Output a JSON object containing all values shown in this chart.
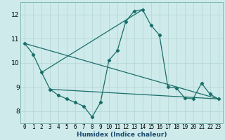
{
  "xlabel": "Humidex (Indice chaleur)",
  "background_color": "#ceeaea",
  "grid_color": "#b8d8d8",
  "line_color": "#1a6e6a",
  "xlim": [
    -0.5,
    23.5
  ],
  "ylim": [
    7.5,
    12.5
  ],
  "yticks": [
    8,
    9,
    10,
    11,
    12
  ],
  "xticks": [
    0,
    1,
    2,
    3,
    4,
    5,
    6,
    7,
    8,
    9,
    10,
    11,
    12,
    13,
    14,
    15,
    16,
    17,
    18,
    19,
    20,
    21,
    22,
    23
  ],
  "series1_x": [
    0,
    1,
    2,
    3,
    4,
    5,
    6,
    7,
    8,
    9,
    10,
    11,
    12,
    13,
    14,
    15,
    16,
    17,
    18,
    19,
    20,
    21,
    22,
    23
  ],
  "series1_y": [
    10.8,
    10.35,
    9.6,
    8.9,
    8.65,
    8.5,
    8.35,
    8.2,
    7.75,
    8.35,
    10.1,
    10.5,
    11.7,
    12.15,
    12.2,
    11.55,
    11.15,
    9.0,
    8.95,
    8.55,
    8.5,
    9.15,
    8.7,
    8.5
  ],
  "trend1_x": [
    0,
    23
  ],
  "trend1_y": [
    10.8,
    8.5
  ],
  "trend2_x": [
    2,
    14
  ],
  "trend2_y": [
    9.6,
    12.2
  ],
  "trend3_x": [
    3,
    23
  ],
  "trend3_y": [
    8.9,
    8.5
  ]
}
